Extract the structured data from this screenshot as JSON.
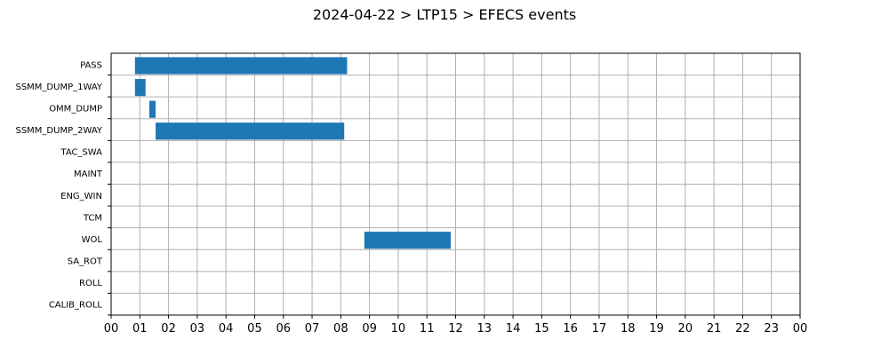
{
  "chart_data": {
    "type": "bar",
    "orientation": "horizontal-timeline",
    "title": "2024-04-22 > LTP15 > EFECS events",
    "categories": [
      "PASS",
      "SSMM_DUMP_1WAY",
      "OMM_DUMP",
      "SSMM_DUMP_2WAY",
      "TAC_SWA",
      "MAINT",
      "ENG_WIN",
      "TCM",
      "WOL",
      "SA_ROT",
      "ROLL",
      "CALIB_ROLL"
    ],
    "x_tick_labels": [
      "00",
      "01",
      "02",
      "03",
      "04",
      "05",
      "06",
      "07",
      "08",
      "09",
      "10",
      "11",
      "12",
      "13",
      "14",
      "15",
      "16",
      "17",
      "18",
      "19",
      "20",
      "21",
      "22",
      "23",
      "00"
    ],
    "xlim_hours": [
      0,
      24
    ],
    "grid": true,
    "bar_color": "#1f77b4",
    "events": [
      {
        "category": "PASS",
        "start_hour": 0.83,
        "end_hour": 8.22
      },
      {
        "category": "SSMM_DUMP_1WAY",
        "start_hour": 0.83,
        "end_hour": 1.2
      },
      {
        "category": "OMM_DUMP",
        "start_hour": 1.33,
        "end_hour": 1.55
      },
      {
        "category": "SSMM_DUMP_2WAY",
        "start_hour": 1.55,
        "end_hour": 8.12
      },
      {
        "category": "WOL",
        "start_hour": 8.82,
        "end_hour": 11.83
      }
    ]
  }
}
